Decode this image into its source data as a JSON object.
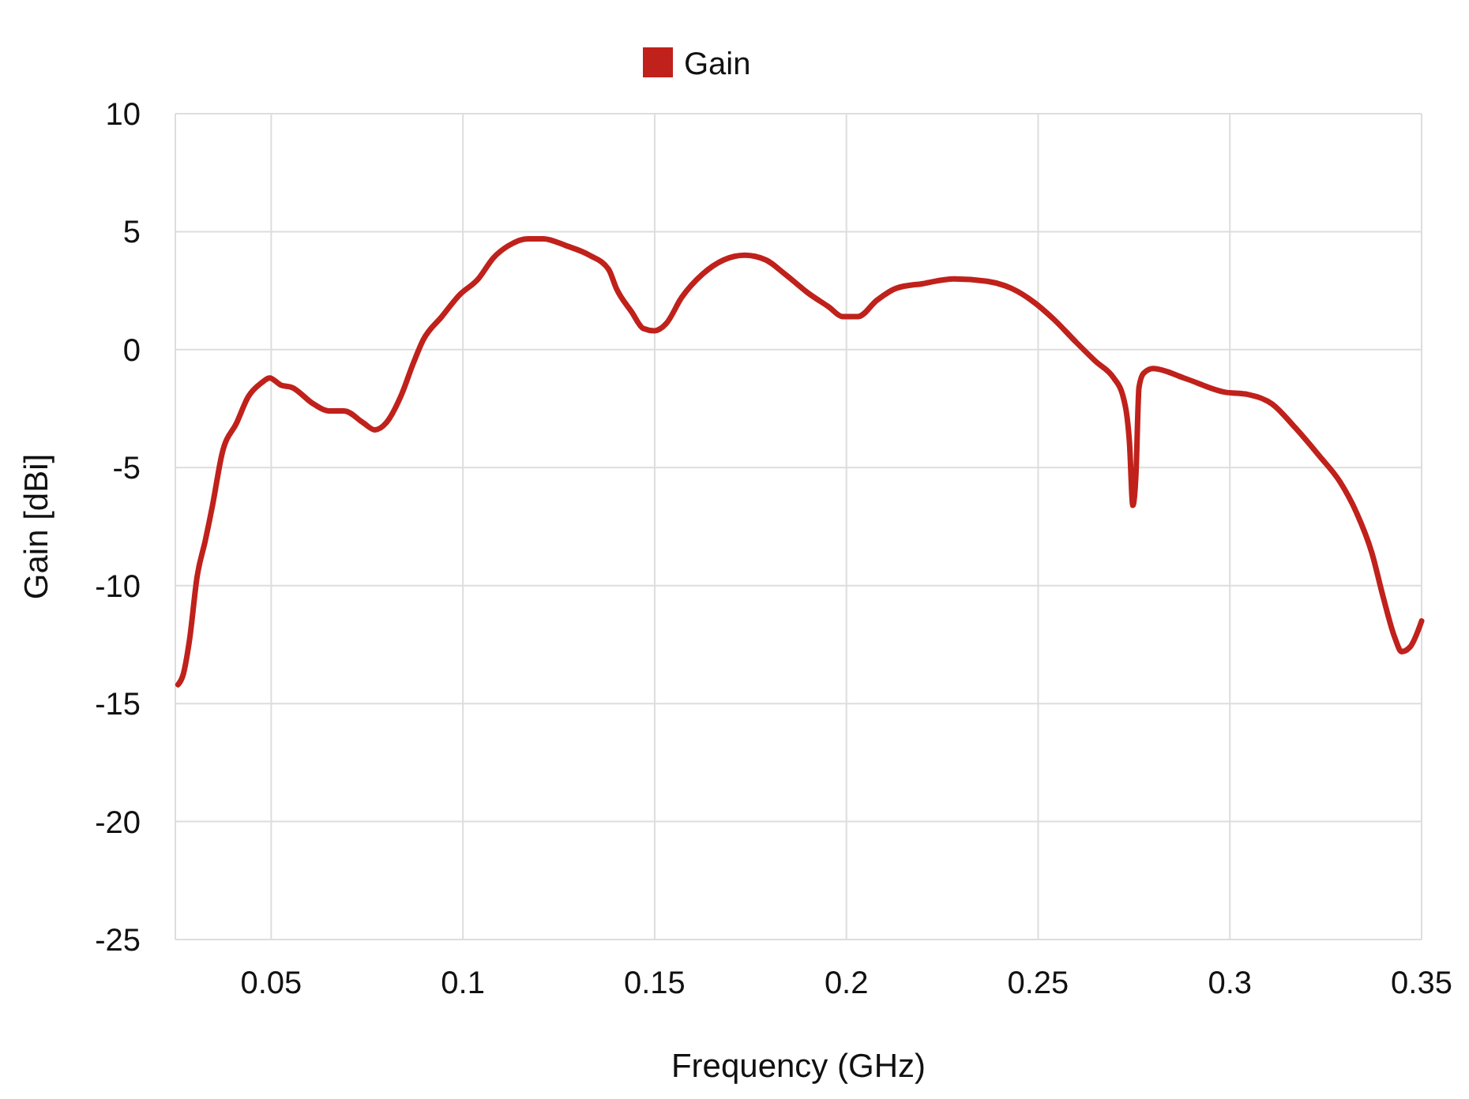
{
  "chart_data": {
    "type": "line",
    "xlabel": "Frequency (GHz)",
    "ylabel": "Gain [dBi]",
    "xlim": [
      0.025,
      0.35
    ],
    "xticks": [
      0.05,
      0.1,
      0.15,
      0.2,
      0.25,
      0.3,
      0.35
    ],
    "ylim": [
      -25,
      10
    ],
    "yticks": [
      -25,
      -20,
      -15,
      -10,
      -5,
      0,
      5,
      10
    ],
    "grid": true,
    "legend": "top",
    "marker": "none",
    "line_style": "solid",
    "x": [
      0.0257,
      0.027,
      0.0287,
      0.0307,
      0.0328,
      0.0347,
      0.0372,
      0.041,
      0.044,
      0.0475,
      0.0496,
      0.0525,
      0.0554,
      0.061,
      0.065,
      0.069,
      0.074,
      0.077,
      0.08,
      0.084,
      0.087,
      0.0896,
      0.0945,
      0.099,
      0.104,
      0.108,
      0.1118,
      0.117,
      0.121,
      0.127,
      0.133,
      0.138,
      0.14,
      0.144,
      0.147,
      0.15,
      0.153,
      0.157,
      0.1625,
      0.168,
      0.1735,
      0.179,
      0.184,
      0.19,
      0.1955,
      0.199,
      0.203,
      0.208,
      0.213,
      0.22,
      0.228,
      0.2367,
      0.243,
      0.249,
      0.254,
      0.26,
      0.265,
      0.2697,
      0.272,
      0.2738,
      0.2747,
      0.2755,
      0.2763,
      0.2775,
      0.28,
      0.288,
      0.2986,
      0.3047,
      0.311,
      0.317,
      0.3233,
      0.3287,
      0.333,
      0.337,
      0.34,
      0.343,
      0.3448,
      0.347,
      0.35
    ],
    "series": [
      {
        "name": "Gain",
        "color": "#c0211b",
        "values": [
          -14.2,
          -13.8,
          -12.3,
          -9.6,
          -8.1,
          -6.6,
          -4.4,
          -3.1,
          -2.0,
          -1.4,
          -1.2,
          -1.5,
          -1.6,
          -2.3,
          -2.6,
          -2.6,
          -3.1,
          -3.4,
          -3.1,
          -1.9,
          -0.6,
          0.4,
          1.4,
          2.3,
          3.0,
          3.9,
          4.4,
          4.7,
          4.7,
          4.4,
          4.0,
          3.4,
          2.6,
          1.6,
          0.9,
          0.8,
          1.1,
          2.2,
          3.2,
          3.8,
          4.0,
          3.8,
          3.2,
          2.4,
          1.8,
          1.4,
          1.4,
          2.1,
          2.6,
          2.8,
          3.0,
          2.9,
          2.6,
          2.0,
          1.3,
          0.3,
          -0.5,
          -1.2,
          -1.9,
          -3.9,
          -6.6,
          -5.3,
          -1.6,
          -1.0,
          -0.8,
          -1.2,
          -1.8,
          -1.9,
          -2.3,
          -3.3,
          -4.5,
          -5.6,
          -6.9,
          -8.6,
          -10.5,
          -12.2,
          -12.8,
          -12.6,
          -11.5
        ]
      }
    ]
  }
}
